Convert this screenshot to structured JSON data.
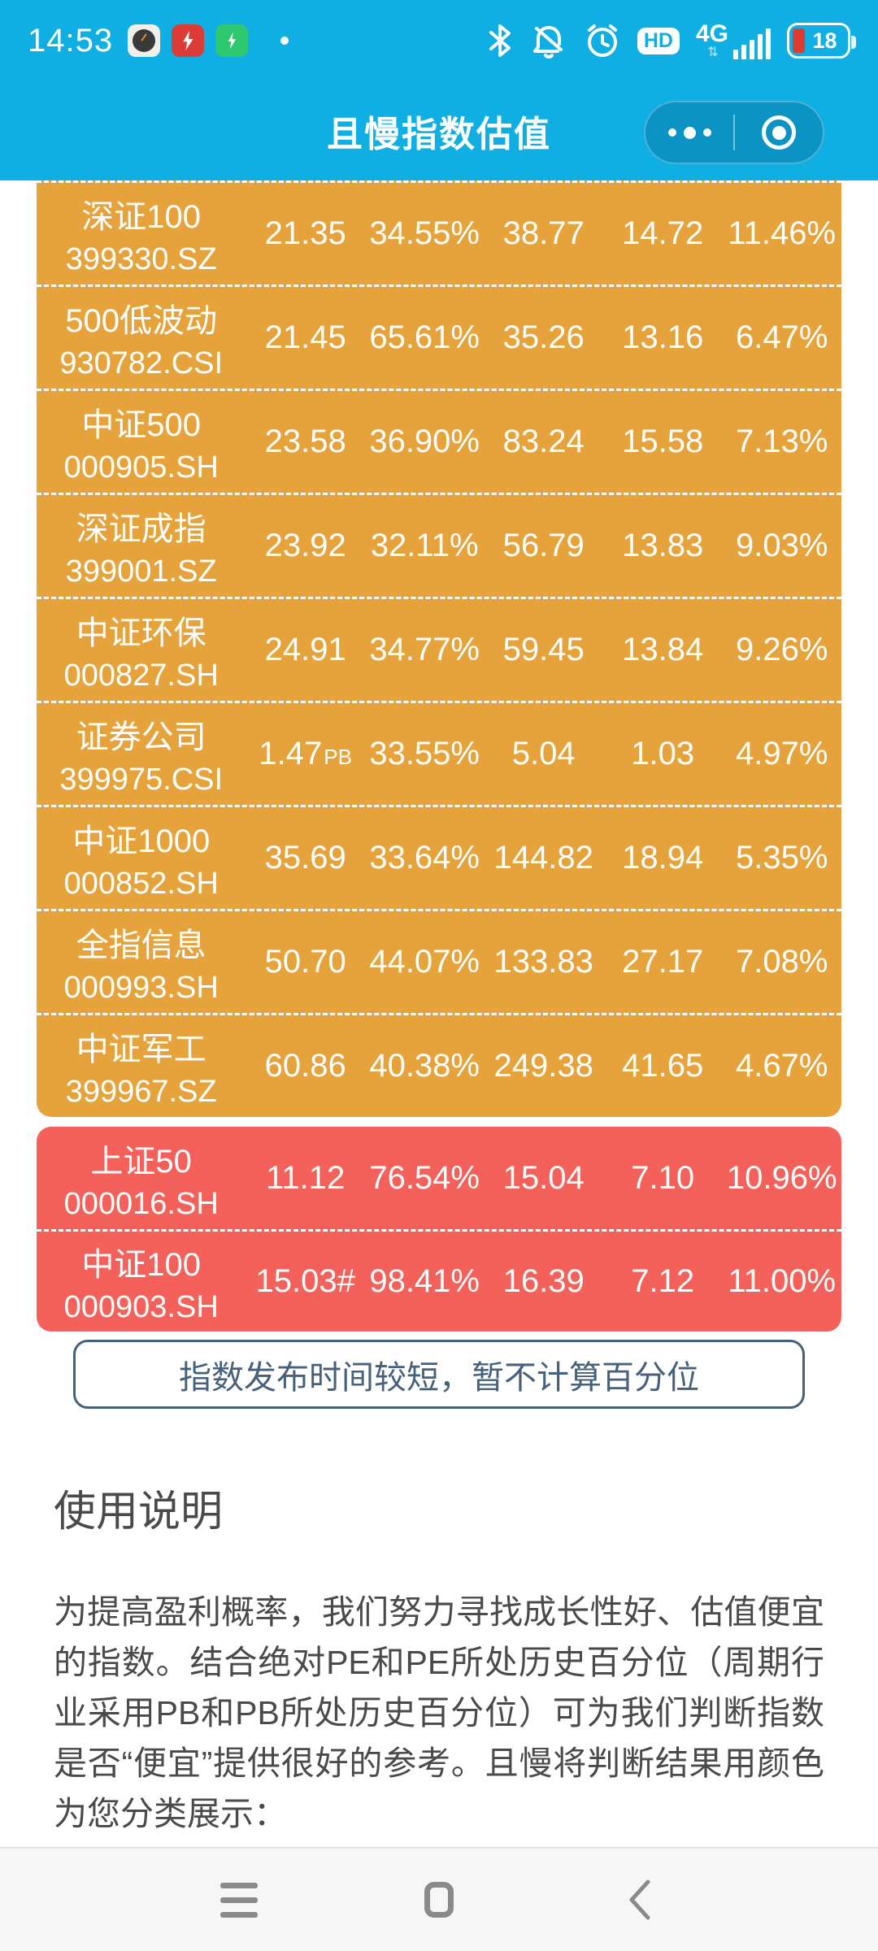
{
  "status_bar": {
    "time": "14:53",
    "hd_label": "HD",
    "network_label": "4G",
    "battery_percent": "18",
    "app_icons": [
      "clock-app-icon",
      "flash-red-app-icon",
      "security-green-app-icon"
    ],
    "right_icons": [
      "bluetooth-icon",
      "mute-bell-icon",
      "alarm-icon",
      "hd-icon",
      "signal-bars-icon",
      "battery-icon"
    ]
  },
  "header": {
    "title": "且慢指数估值",
    "capsule": {
      "more_icon": "more-dots-icon",
      "close_icon": "target-circle-icon"
    }
  },
  "table": {
    "colors": {
      "warning": "#e6a33c",
      "danger": "#f4605a"
    },
    "rows": [
      {
        "tone": "warning",
        "name": "深证100",
        "code": "399330.SZ",
        "cells": [
          {
            "text": "21.35"
          },
          {
            "text": "34.55%"
          },
          {
            "text": "38.77"
          },
          {
            "text": "14.72"
          },
          {
            "text": "11.46%"
          }
        ]
      },
      {
        "tone": "warning",
        "name": "500低波动",
        "code": "930782.CSI",
        "cells": [
          {
            "text": "21.45"
          },
          {
            "text": "65.61%"
          },
          {
            "text": "35.26"
          },
          {
            "text": "13.16"
          },
          {
            "text": "6.47%"
          }
        ]
      },
      {
        "tone": "warning",
        "name": "中证500",
        "code": "000905.SH",
        "cells": [
          {
            "text": "23.58"
          },
          {
            "text": "36.90%"
          },
          {
            "text": "83.24"
          },
          {
            "text": "15.58"
          },
          {
            "text": "7.13%"
          }
        ]
      },
      {
        "tone": "warning",
        "name": "深证成指",
        "code": "399001.SZ",
        "cells": [
          {
            "text": "23.92"
          },
          {
            "text": "32.11%"
          },
          {
            "text": "56.79"
          },
          {
            "text": "13.83"
          },
          {
            "text": "9.03%"
          }
        ]
      },
      {
        "tone": "warning",
        "name": "中证环保",
        "code": "000827.SH",
        "cells": [
          {
            "text": "24.91"
          },
          {
            "text": "34.77%"
          },
          {
            "text": "59.45"
          },
          {
            "text": "13.84"
          },
          {
            "text": "9.26%"
          }
        ]
      },
      {
        "tone": "warning",
        "name": "证券公司",
        "code": "399975.CSI",
        "cells": [
          {
            "text": "1.47",
            "suffix": "PB"
          },
          {
            "text": "33.55%"
          },
          {
            "text": "5.04"
          },
          {
            "text": "1.03"
          },
          {
            "text": "4.97%"
          }
        ]
      },
      {
        "tone": "warning",
        "name": "中证1000",
        "code": "000852.SH",
        "cells": [
          {
            "text": "35.69"
          },
          {
            "text": "33.64%"
          },
          {
            "text": "144.82"
          },
          {
            "text": "18.94"
          },
          {
            "text": "5.35%"
          }
        ]
      },
      {
        "tone": "warning",
        "name": "全指信息",
        "code": "000993.SH",
        "cells": [
          {
            "text": "50.70"
          },
          {
            "text": "44.07%"
          },
          {
            "text": "133.83"
          },
          {
            "text": "27.17"
          },
          {
            "text": "7.08%"
          }
        ]
      },
      {
        "tone": "warning",
        "name": "中证军工",
        "code": "399967.SZ",
        "cells": [
          {
            "text": "60.86"
          },
          {
            "text": "40.38%"
          },
          {
            "text": "249.38"
          },
          {
            "text": "41.65"
          },
          {
            "text": "4.67%"
          }
        ]
      },
      {
        "tone": "danger",
        "name": "上证50",
        "code": "000016.SH",
        "cells": [
          {
            "text": "11.12"
          },
          {
            "text": "76.54%"
          },
          {
            "text": "15.04"
          },
          {
            "text": "7.10"
          },
          {
            "text": "10.96%"
          }
        ]
      },
      {
        "tone": "danger",
        "name": "中证100",
        "code": "000903.SH",
        "cells": [
          {
            "text": "15.03#"
          },
          {
            "text": "98.41%"
          },
          {
            "text": "16.39"
          },
          {
            "text": "7.12"
          },
          {
            "text": "11.00%"
          }
        ]
      }
    ]
  },
  "note": {
    "text": "指数发布时间较短，暂不计算百分位"
  },
  "instructions": {
    "heading": "使用说明",
    "body": "为提高盈利概率，我们努力寻找成长性好、估值便宜的指数。结合绝对PE和PE所处历史百分位（周期行业采用PB和PB所处历史百分位）可为我们判断指数是否“便宜”提供很好的参考。且慢将判断结果用颜色为您分类展示："
  },
  "nav_bar": {
    "icons": [
      "menu-icon",
      "home-icon",
      "back-icon"
    ]
  }
}
